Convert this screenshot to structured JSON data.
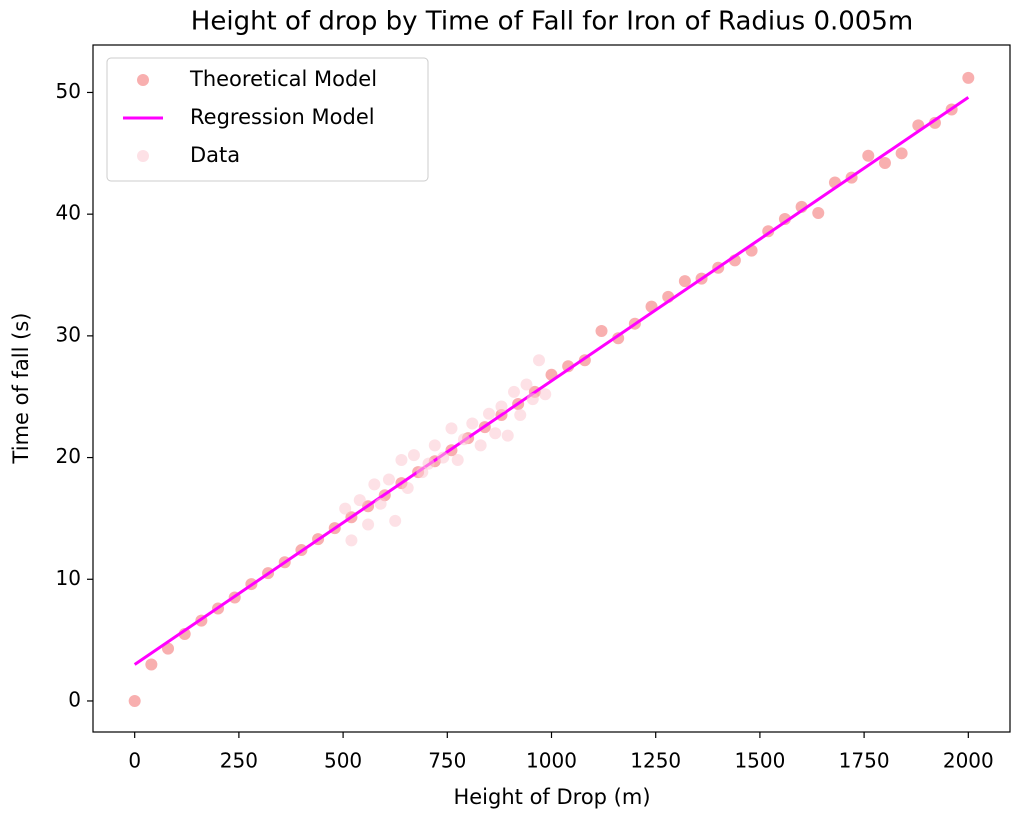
{
  "chart_data": {
    "type": "scatter",
    "title": "Height of drop by Time of Fall for Iron of Radius 0.005m",
    "x_label": "Height of Drop (m)",
    "y_label": "Time of fall (s)",
    "xlim": [
      -100,
      2100
    ],
    "ylim": [
      -2.55,
      53.9
    ],
    "xticks": [
      0,
      250,
      500,
      750,
      1000,
      1250,
      1500,
      1750,
      2000
    ],
    "yticks": [
      0,
      10,
      20,
      30,
      40,
      50
    ],
    "legend": "upper left",
    "series": [
      {
        "name": "Theoretical Model",
        "type": "scatter",
        "color": "#f26d6d",
        "x": [
          0,
          40,
          80,
          120,
          160,
          200,
          240,
          280,
          320,
          360,
          400,
          440,
          480,
          520,
          560,
          600,
          640,
          680,
          720,
          760,
          800,
          840,
          880,
          920,
          960,
          1000,
          1040,
          1080,
          1120,
          1160,
          1200,
          1240,
          1280,
          1320,
          1360,
          1400,
          1440,
          1480,
          1520,
          1560,
          1600,
          1640,
          1680,
          1720,
          1760,
          1800,
          1840,
          1880,
          1920,
          1960,
          2000
        ],
        "values": [
          0,
          3.0,
          4.3,
          5.5,
          6.6,
          7.6,
          8.5,
          9.6,
          10.5,
          11.4,
          12.4,
          13.3,
          14.2,
          15.1,
          16.0,
          16.9,
          17.9,
          18.8,
          19.7,
          20.6,
          21.6,
          22.5,
          23.5,
          24.4,
          25.4,
          26.8,
          27.5,
          28.0,
          30.4,
          29.8,
          31.0,
          32.4,
          33.2,
          34.5,
          34.7,
          35.6,
          36.2,
          37.0,
          38.6,
          39.6,
          40.6,
          40.1,
          42.6,
          43.0,
          44.8,
          44.2,
          45.0,
          47.3,
          47.5,
          48.6,
          51.2
        ]
      },
      {
        "name": "Regression Model",
        "type": "line",
        "color": "#ff00ff",
        "x": [
          0,
          2000
        ],
        "values": [
          3.0,
          49.6
        ]
      },
      {
        "name": "Data",
        "type": "scatter",
        "color": "#fcc8d2",
        "x": [
          505,
          520,
          540,
          560,
          575,
          590,
          610,
          625,
          640,
          655,
          670,
          690,
          705,
          720,
          740,
          760,
          775,
          790,
          810,
          830,
          850,
          865,
          880,
          895,
          910,
          925,
          940,
          955,
          970,
          985
        ],
        "values": [
          15.8,
          13.2,
          16.5,
          14.5,
          17.8,
          16.2,
          18.2,
          14.8,
          19.8,
          17.5,
          20.2,
          18.8,
          19.5,
          21.0,
          20.0,
          22.4,
          19.8,
          21.5,
          22.8,
          21.0,
          23.6,
          22.0,
          24.2,
          21.8,
          25.4,
          23.5,
          26.0,
          24.8,
          28.0,
          25.2
        ]
      }
    ]
  }
}
